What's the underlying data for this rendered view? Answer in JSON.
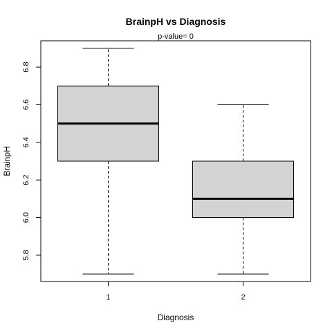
{
  "chart_data": {
    "type": "box",
    "title": "BrainpH  vs  Diagnosis",
    "subtitle": "p-value= 0",
    "xlabel": "Diagnosis",
    "ylabel": "BrainpH",
    "categories": [
      "1",
      "2"
    ],
    "boxes": [
      {
        "category": "1",
        "min": 5.7,
        "q1": 6.3,
        "median": 6.5,
        "q3": 6.7,
        "max": 6.9
      },
      {
        "category": "2",
        "min": 5.7,
        "q1": 6.0,
        "median": 6.1,
        "q3": 6.3,
        "max": 6.6
      }
    ],
    "yticks": [
      "5.8",
      "6.0",
      "6.2",
      "6.4",
      "6.6",
      "6.8"
    ],
    "ylim": [
      5.66,
      6.94
    ],
    "grid": false,
    "box_fill": "#d3d3d3",
    "line_color": "#000000"
  }
}
